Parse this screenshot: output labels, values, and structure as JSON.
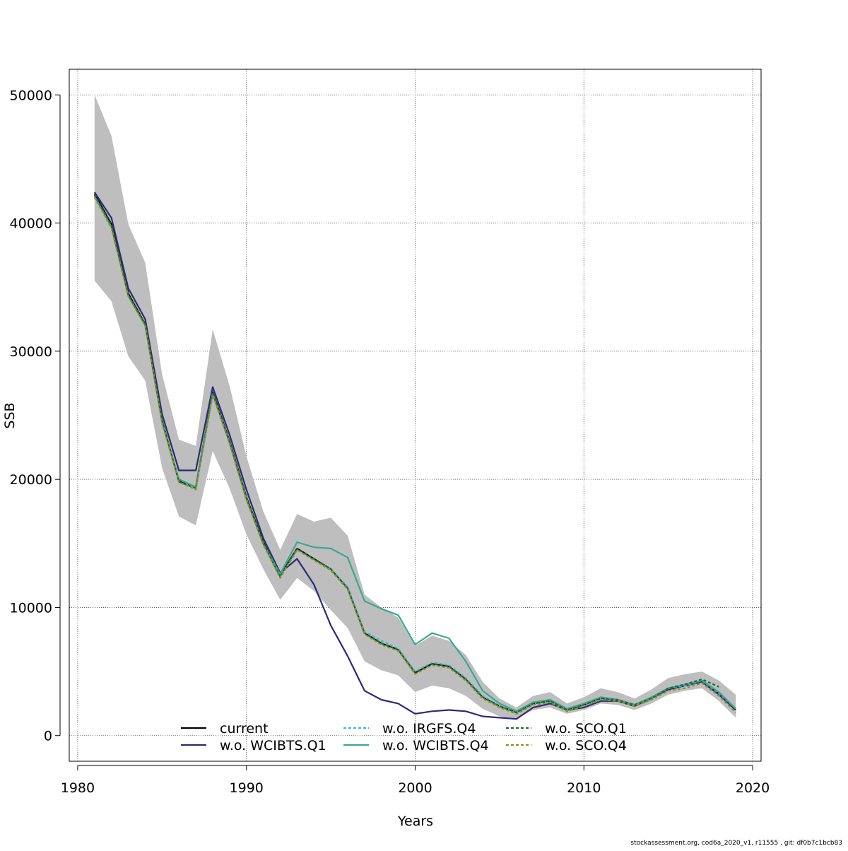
{
  "chart_data": {
    "type": "line",
    "xlabel": "Years",
    "ylabel": "SSB",
    "xlim": [
      1979.5,
      2020.5
    ],
    "ylim": [
      -2000,
      52000
    ],
    "x_ticks": [
      1980,
      1990,
      2000,
      2010,
      2020
    ],
    "y_ticks": [
      0,
      10000,
      20000,
      30000,
      40000,
      50000
    ],
    "x_tick_labels": [
      "1980",
      "1990",
      "2000",
      "2010",
      "2020"
    ],
    "y_tick_labels": [
      "0",
      "10000",
      "20000",
      "30000",
      "40000",
      "50000"
    ],
    "grid": true,
    "legend_position": "bottom-center",
    "band": {
      "x": [
        1981,
        1982,
        1983,
        1984,
        1985,
        1986,
        1987,
        1988,
        1989,
        1990,
        1991,
        1992,
        1993,
        1994,
        1995,
        1996,
        1997,
        1998,
        1999,
        2000,
        2001,
        2002,
        2003,
        2004,
        2005,
        2006,
        2007,
        2008,
        2009,
        2010,
        2011,
        2012,
        2013,
        2014,
        2015,
        2016,
        2017,
        2018,
        2019
      ],
      "upper": [
        50000,
        46800,
        39900,
        36900,
        28200,
        23100,
        22600,
        31700,
        27300,
        21800,
        17500,
        14500,
        17300,
        16700,
        17000,
        15600,
        11000,
        10000,
        9200,
        7000,
        7800,
        7400,
        6300,
        4200,
        2900,
        2200,
        3100,
        3400,
        2500,
        3000,
        3700,
        3400,
        2900,
        3600,
        4500,
        4800,
        5000,
        4300,
        3200
      ],
      "lower": [
        35500,
        33900,
        29600,
        27700,
        20900,
        17100,
        16400,
        22200,
        19300,
        15700,
        13000,
        10600,
        12300,
        11300,
        9800,
        8400,
        5800,
        5100,
        4700,
        3400,
        3900,
        3700,
        3100,
        2100,
        1500,
        1300,
        2000,
        2200,
        1700,
        2000,
        2500,
        2400,
        2000,
        2500,
        3200,
        3500,
        3700,
        2700,
        1400
      ]
    },
    "series": [
      {
        "name": "current",
        "color": "#000000",
        "dash": "none",
        "x": [
          1981,
          1982,
          1983,
          1984,
          1985,
          1986,
          1987,
          1988,
          1989,
          1990,
          1991,
          1992,
          1993,
          1994,
          1995,
          1996,
          1997,
          1998,
          1999,
          2000,
          2001,
          2002,
          2003,
          2004,
          2005,
          2006,
          2007,
          2008,
          2009,
          2010,
          2011,
          2012,
          2013,
          2014,
          2015,
          2016,
          2017,
          2018,
          2019
        ],
        "values": [
          42300,
          39900,
          34500,
          32100,
          24600,
          19900,
          19400,
          26800,
          23000,
          18600,
          15100,
          12500,
          14600,
          13800,
          13000,
          11500,
          8000,
          7200,
          6700,
          4900,
          5600,
          5400,
          4400,
          3000,
          2300,
          1800,
          2500,
          2700,
          2000,
          2400,
          2900,
          2800,
          2400,
          2900,
          3700,
          3900,
          4300,
          3300,
          2000
        ]
      },
      {
        "name": "w.o. WCIBTS.Q1",
        "color": "#2a2a7e",
        "dash": "none",
        "x": [
          1981,
          1982,
          1983,
          1984,
          1985,
          1986,
          1987,
          1988,
          1989,
          1990,
          1991,
          1992,
          1993,
          1994,
          1995,
          1996,
          1997,
          1998,
          1999,
          2000,
          2001,
          2002,
          2003,
          2004,
          2005,
          2006,
          2007,
          2008,
          2009,
          2010,
          2011,
          2012,
          2013,
          2014,
          2015,
          2016,
          2017,
          2018,
          2019
        ],
        "values": [
          42400,
          40400,
          34900,
          32500,
          25100,
          20700,
          20700,
          27200,
          23500,
          19200,
          15400,
          12700,
          13800,
          11800,
          8600,
          6200,
          3500,
          2800,
          2500,
          1700,
          1900,
          2000,
          1900,
          1500,
          1400,
          1300,
          2200,
          2500,
          2000,
          2200,
          2700,
          2700,
          2300,
          2900,
          3600,
          3900,
          4200,
          3200,
          2000
        ]
      },
      {
        "name": "w.o. IRGFS.Q4",
        "color": "#35b8e8",
        "dash": "4,3",
        "x": [
          1981,
          1982,
          1983,
          1984,
          1985,
          1986,
          1987,
          1988,
          1989,
          1990,
          1991,
          1992,
          1993,
          1994,
          1995,
          1996,
          1997,
          1998,
          1999,
          2000,
          2001,
          2002,
          2003,
          2004,
          2005,
          2006,
          2007,
          2008,
          2009,
          2010,
          2011,
          2012,
          2013,
          2014,
          2015,
          2016,
          2017,
          2018,
          2019
        ],
        "values": [
          42200,
          39800,
          34400,
          32000,
          24500,
          20000,
          19300,
          26700,
          22900,
          18500,
          15000,
          12400,
          14500,
          13700,
          13000,
          11600,
          8100,
          7400,
          6800,
          5000,
          5700,
          5500,
          4500,
          3100,
          2300,
          1800,
          2500,
          2700,
          2000,
          2400,
          2900,
          2800,
          2400,
          2900,
          3700,
          3900,
          4300,
          3300,
          2100
        ]
      },
      {
        "name": "w.o. WCIBTS.Q4",
        "color": "#3aa890",
        "dash": "none",
        "x": [
          1981,
          1982,
          1983,
          1984,
          1985,
          1986,
          1987,
          1988,
          1989,
          1990,
          1991,
          1992,
          1993,
          1994,
          1995,
          1996,
          1997,
          1998,
          1999,
          2000,
          2001,
          2002,
          2003,
          2004,
          2005,
          2006,
          2007,
          2008,
          2009,
          2010,
          2011,
          2012,
          2013,
          2014,
          2015,
          2016,
          2017,
          2018,
          2019
        ],
        "values": [
          42100,
          39700,
          34300,
          32000,
          24500,
          20000,
          19400,
          26700,
          22900,
          18500,
          15000,
          12600,
          15100,
          14700,
          14600,
          13900,
          10500,
          9900,
          9400,
          7100,
          8000,
          7600,
          5800,
          3500,
          2500,
          1900,
          2600,
          2800,
          2100,
          2500,
          3000,
          2800,
          2400,
          3000,
          3700,
          4000,
          4300,
          3400,
          2100
        ]
      },
      {
        "name": "w.o. SCO.Q1",
        "color": "#1c6e2c",
        "dash": "4,3",
        "x": [
          1981,
          1982,
          1983,
          1984,
          1985,
          1986,
          1987,
          1988,
          1989,
          1990,
          1991,
          1992,
          1993,
          1994,
          1995,
          1996,
          1997,
          1998,
          1999,
          2000,
          2001,
          2002,
          2003,
          2004,
          2005,
          2006,
          2007,
          2008,
          2009,
          2010,
          2011,
          2012,
          2013,
          2014,
          2015,
          2016,
          2017,
          2018
        ],
        "values": [
          42200,
          39800,
          34400,
          32100,
          24600,
          19800,
          19300,
          26700,
          22900,
          18500,
          15000,
          12400,
          14600,
          13800,
          13000,
          11500,
          8000,
          7200,
          6700,
          4900,
          5600,
          5400,
          4400,
          3000,
          2300,
          1800,
          2500,
          2700,
          2000,
          2400,
          2900,
          2800,
          2400,
          2900,
          3700,
          4000,
          4400,
          3800
        ]
      },
      {
        "name": "w.o. SCO.Q4",
        "color": "#9a8a20",
        "dash": "4,3",
        "x": [
          1981,
          1982,
          1983,
          1984,
          1985,
          1986,
          1987,
          1988,
          1989,
          1990,
          1991,
          1992,
          1993,
          1994,
          1995,
          1996,
          1997,
          1998,
          1999,
          2000,
          2001,
          2002,
          2003,
          2004,
          2005,
          2006,
          2007,
          2008,
          2009,
          2010,
          2011,
          2012,
          2013,
          2014,
          2015,
          2016,
          2017,
          2018,
          2019
        ],
        "values": [
          42000,
          39600,
          34300,
          32000,
          24400,
          19800,
          19200,
          26600,
          22800,
          18400,
          14900,
          12300,
          14500,
          13700,
          12900,
          11400,
          7900,
          7100,
          6600,
          4800,
          5500,
          5300,
          4300,
          2900,
          2200,
          1700,
          2400,
          2600,
          1900,
          2300,
          2800,
          2700,
          2300,
          2800,
          3500,
          3700,
          4100,
          3100,
          1800
        ]
      }
    ]
  },
  "footer": "stockassessment.org, cod6a_2020_v1, r11555 , git: df0b7c1bcb83"
}
